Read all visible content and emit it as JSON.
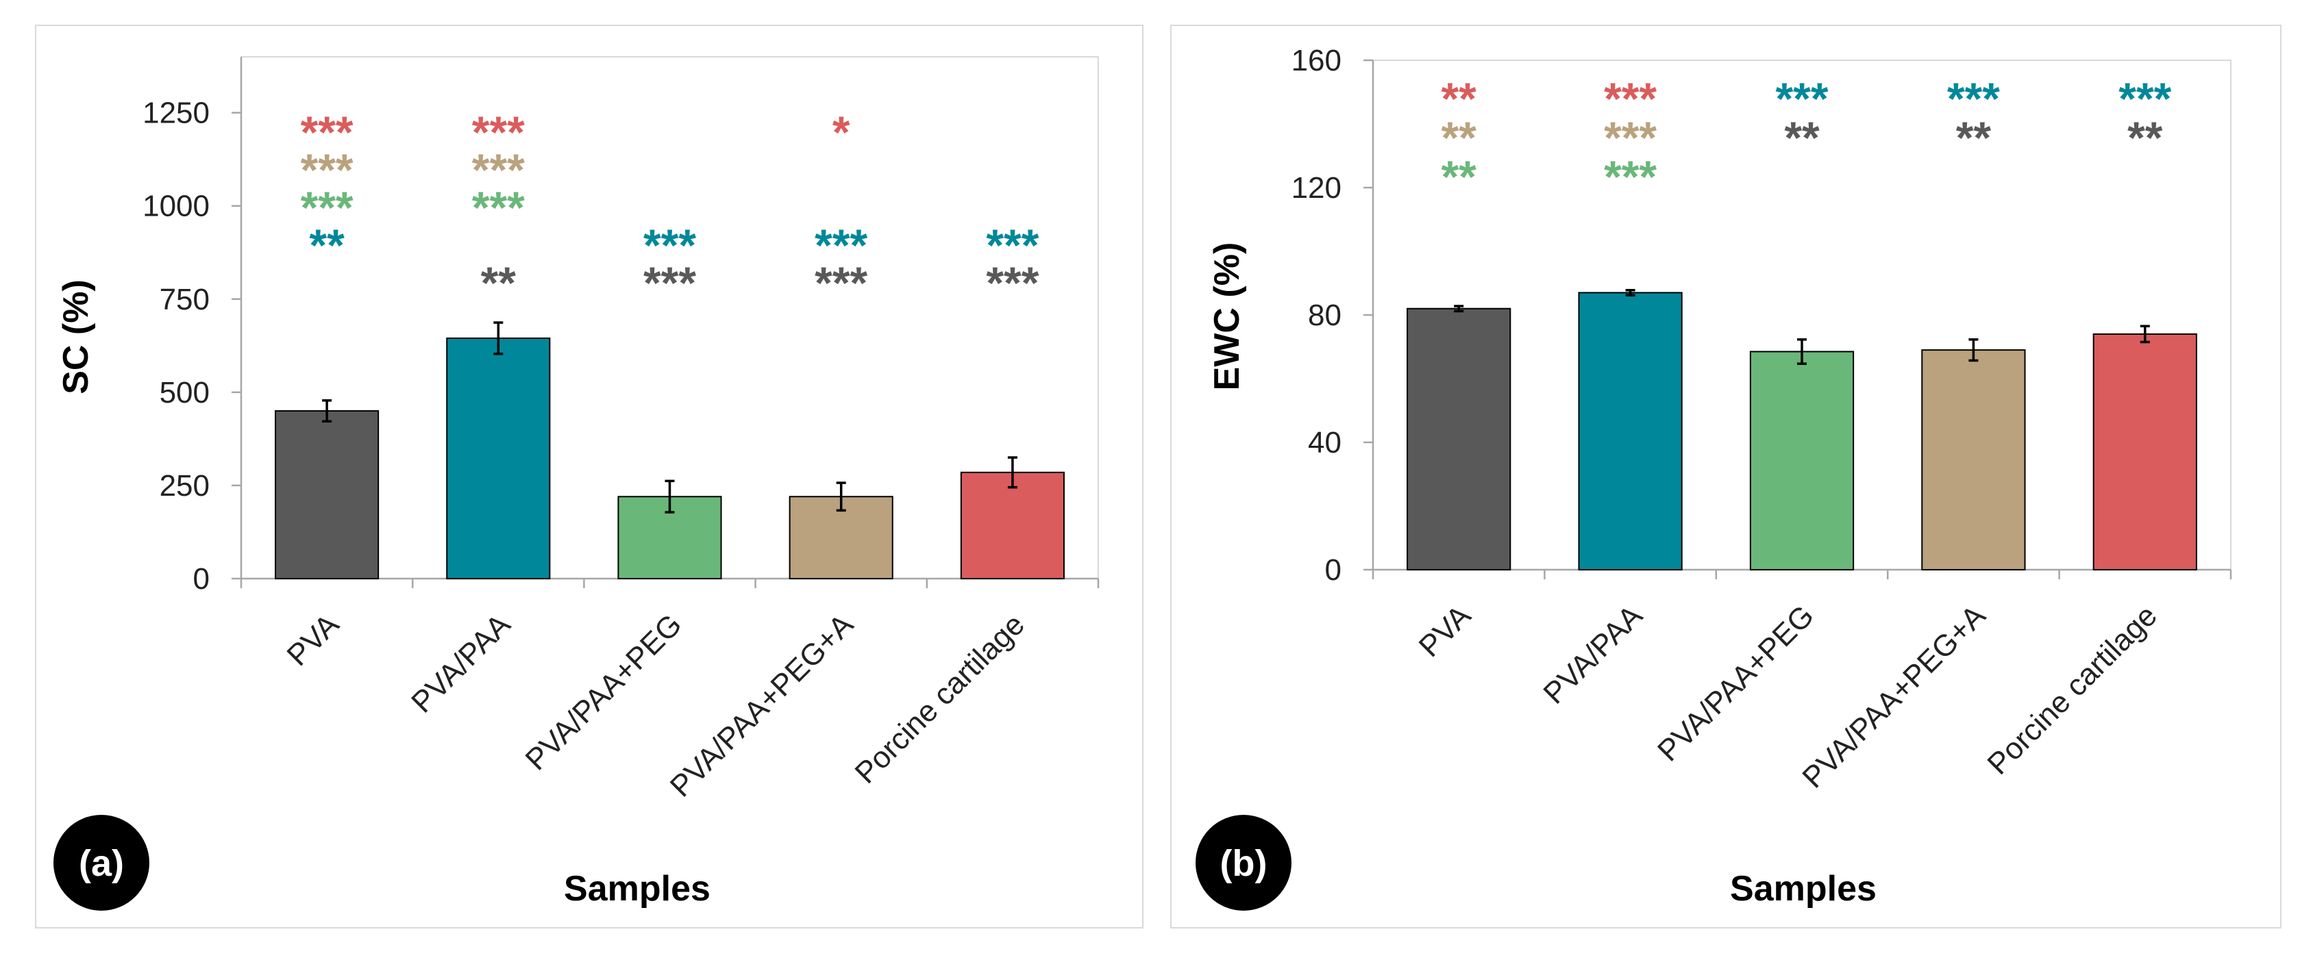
{
  "colors": {
    "PVA": "#595959",
    "PVA/PAA": "#00889a",
    "PVA/PAA+PEG": "#6ab77a",
    "PVA/PAA+PEG+A": "#b9a27d",
    "Porcine cartilage": "#da5c5c"
  },
  "chart_data": [
    {
      "type": "bar",
      "panel": "(a)",
      "title": "",
      "xlabel": "Samples",
      "ylabel": "SC (%)",
      "ylim": [
        0,
        1400
      ],
      "yticks": [
        0,
        250,
        500,
        750,
        1000,
        1250
      ],
      "grid": false,
      "categories": [
        "PVA",
        "PVA/PAA",
        "PVA/PAA+PEG",
        "PVA/PAA+PEG+A",
        "Porcine cartilage"
      ],
      "values": [
        450,
        645,
        220,
        220,
        285
      ],
      "errors": [
        28,
        42,
        42,
        37,
        40
      ],
      "significance": [
        [
          {
            "text": "***",
            "ref": "Porcine cartilage"
          },
          {
            "text": "***",
            "ref": "PVA/PAA+PEG+A"
          },
          {
            "text": "***",
            "ref": "PVA/PAA+PEG"
          },
          {
            "text": "**",
            "ref": "PVA/PAA"
          }
        ],
        [
          {
            "text": "***",
            "ref": "Porcine cartilage"
          },
          {
            "text": "***",
            "ref": "PVA/PAA+PEG+A"
          },
          {
            "text": "***",
            "ref": "PVA/PAA+PEG"
          },
          {
            "text": "",
            "ref": ""
          },
          {
            "text": "**",
            "ref": "PVA"
          }
        ],
        [
          {
            "text": "***",
            "ref": "PVA/PAA"
          },
          {
            "text": "***",
            "ref": "PVA"
          }
        ],
        [
          {
            "text": "*",
            "ref": "Porcine cartilage"
          },
          {
            "text": "",
            "ref": ""
          },
          {
            "text": "",
            "ref": ""
          },
          {
            "text": "***",
            "ref": "PVA/PAA"
          },
          {
            "text": "***",
            "ref": "PVA"
          }
        ],
        [
          {
            "text": "***",
            "ref": "PVA/PAA"
          },
          {
            "text": "***",
            "ref": "PVA"
          }
        ]
      ]
    },
    {
      "type": "bar",
      "panel": "(b)",
      "title": "",
      "xlabel": "Samples",
      "ylabel": "EWC (%)",
      "ylim": [
        0,
        160
      ],
      "yticks": [
        0,
        40,
        80,
        120,
        160
      ],
      "grid": false,
      "categories": [
        "PVA",
        "PVA/PAA",
        "PVA/PAA+PEG",
        "PVA/PAA+PEG+A",
        "Porcine cartilage"
      ],
      "values": [
        82,
        87,
        68.5,
        69,
        74
      ],
      "errors": [
        0.8,
        0.8,
        3.8,
        3.3,
        2.5
      ],
      "significance": [
        [
          {
            "text": "**",
            "ref": "Porcine cartilage"
          },
          {
            "text": "**",
            "ref": "PVA/PAA+PEG+A"
          },
          {
            "text": "**",
            "ref": "PVA/PAA+PEG"
          }
        ],
        [
          {
            "text": "***",
            "ref": "Porcine cartilage"
          },
          {
            "text": "***",
            "ref": "PVA/PAA+PEG+A"
          },
          {
            "text": "***",
            "ref": "PVA/PAA+PEG"
          }
        ],
        [
          {
            "text": "***",
            "ref": "PVA/PAA"
          },
          {
            "text": "**",
            "ref": "PVA"
          }
        ],
        [
          {
            "text": "***",
            "ref": "PVA/PAA"
          },
          {
            "text": "**",
            "ref": "PVA"
          }
        ],
        [
          {
            "text": "***",
            "ref": "PVA/PAA"
          },
          {
            "text": "**",
            "ref": "PVA"
          }
        ]
      ]
    }
  ]
}
